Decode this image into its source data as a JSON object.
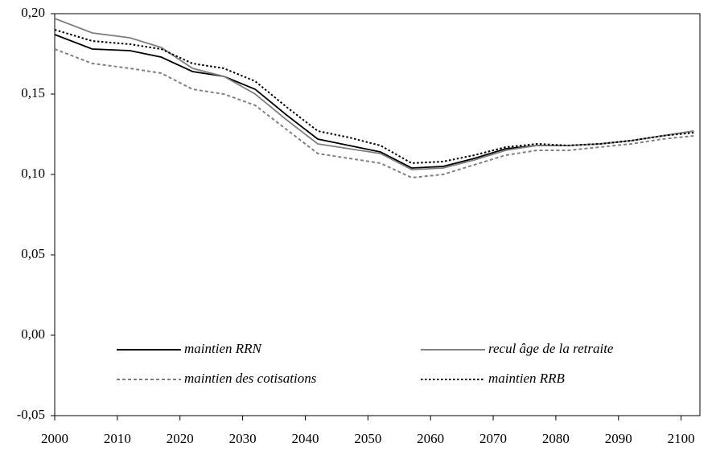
{
  "chart_data": {
    "type": "line",
    "x": [
      2000,
      2006,
      2012,
      2017,
      2022,
      2027,
      2032,
      2037,
      2042,
      2047,
      2052,
      2057,
      2062,
      2067,
      2072,
      2077,
      2082,
      2087,
      2092,
      2097,
      2102
    ],
    "series": [
      {
        "name": "maintien RRN",
        "color": "#000000",
        "dash": "solid",
        "values": [
          0.187,
          0.178,
          0.177,
          0.173,
          0.164,
          0.161,
          0.153,
          0.137,
          0.122,
          0.118,
          0.114,
          0.104,
          0.105,
          0.11,
          0.116,
          0.118,
          0.118,
          0.119,
          0.121,
          0.124,
          0.127
        ]
      },
      {
        "name": "recul âge de la retraite",
        "color": "#808080",
        "dash": "solid",
        "values": [
          0.197,
          0.188,
          0.185,
          0.179,
          0.166,
          0.161,
          0.15,
          0.134,
          0.119,
          0.116,
          0.113,
          0.103,
          0.104,
          0.109,
          0.115,
          0.118,
          0.118,
          0.119,
          0.121,
          0.124,
          0.127
        ]
      },
      {
        "name": "maintien des cotisations",
        "color": "#808080",
        "dash": "dashed",
        "values": [
          0.178,
          0.169,
          0.166,
          0.163,
          0.153,
          0.15,
          0.143,
          0.128,
          0.113,
          0.11,
          0.107,
          0.098,
          0.1,
          0.106,
          0.112,
          0.115,
          0.115,
          0.117,
          0.119,
          0.122,
          0.124
        ]
      },
      {
        "name": "maintien RRB",
        "color": "#000000",
        "dash": "dotted",
        "values": [
          0.19,
          0.183,
          0.181,
          0.178,
          0.169,
          0.166,
          0.158,
          0.142,
          0.127,
          0.123,
          0.118,
          0.107,
          0.108,
          0.112,
          0.117,
          0.119,
          0.118,
          0.119,
          0.121,
          0.124,
          0.126
        ]
      }
    ],
    "xlim": [
      2000,
      2103
    ],
    "xticks": [
      2000,
      2010,
      2020,
      2030,
      2040,
      2050,
      2060,
      2070,
      2080,
      2090,
      2100
    ],
    "ylim": [
      -0.05,
      0.2
    ],
    "yticks": [
      {
        "value": -0.05,
        "label": "-0,05"
      },
      {
        "value": 0,
        "label": "0,00"
      },
      {
        "value": 0.05,
        "label": "0,05"
      },
      {
        "value": 0.1,
        "label": "0,10"
      },
      {
        "value": 0.15,
        "label": "0,15"
      },
      {
        "value": 0.2,
        "label": "0,20"
      }
    ],
    "grid": false,
    "legend": "bottom"
  }
}
